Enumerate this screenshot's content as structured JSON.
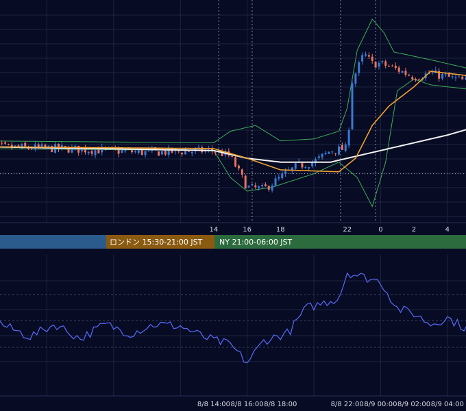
{
  "colors": {
    "background": "#070b24",
    "grid": "#1f2640",
    "candle_up": "#3a7bd5",
    "candle_down": "#e8735f",
    "bollinger": "#3fae59",
    "ma_short": "#f0a030",
    "ma_long": "#f2f2f2",
    "indicator_line": "#5566ee",
    "session_tokyo": "#2b5a8c",
    "session_london": "#8a5a10",
    "session_ny": "#2c6b3e",
    "price_line": "#a8a8b0"
  },
  "sessions": {
    "london_label": "ロンドン 15:30-21:00 JST",
    "ny_label": "NY 21:00-06:00 JST"
  },
  "chart_data": [
    {
      "type": "candlestick",
      "title": "",
      "xaxis": {
        "labels": [
          "14",
          "16",
          "18",
          "22",
          "0",
          "2",
          "4"
        ]
      },
      "indicators": [
        "Bollinger Bands",
        "Moving Average (short)",
        "Moving Average (long)"
      ],
      "grid": true,
      "note": "No price-axis labels are printed; values are in relative price units (0 = lowest, 100 = highest visible)",
      "close_path": [
        {
          "t": 0,
          "v": 34
        },
        {
          "t": 5,
          "v": 33
        },
        {
          "t": 10,
          "v": 31
        },
        {
          "t": 14,
          "v": 32
        },
        {
          "t": 15,
          "v": 29
        },
        {
          "t": 16,
          "v": 13
        },
        {
          "t": 17,
          "v": 12
        },
        {
          "t": 18,
          "v": 18
        },
        {
          "t": 19,
          "v": 24
        },
        {
          "t": 20,
          "v": 26
        },
        {
          "t": 21,
          "v": 32
        },
        {
          "t": 22,
          "v": 33
        },
        {
          "t": 22.3,
          "v": 68
        },
        {
          "t": 23,
          "v": 82
        },
        {
          "t": 23.5,
          "v": 77
        },
        {
          "t": 24,
          "v": 77
        },
        {
          "t": 25,
          "v": 74
        },
        {
          "t": 26,
          "v": 70
        },
        {
          "t": 27,
          "v": 72
        },
        {
          "t": 28,
          "v": 70
        },
        {
          "t": 29,
          "v": 68
        },
        {
          "t": 30,
          "v": 67
        },
        {
          "t": 31,
          "v": 66
        },
        {
          "t": 32,
          "v": 67
        },
        {
          "t": 33,
          "v": 65
        }
      ],
      "bollinger": {
        "upper": [
          {
            "t": 0,
            "v": 37
          },
          {
            "t": 14,
            "v": 36
          },
          {
            "t": 15,
            "v": 42
          },
          {
            "t": 16.5,
            "v": 45
          },
          {
            "t": 18,
            "v": 37
          },
          {
            "t": 20,
            "v": 38
          },
          {
            "t": 21.5,
            "v": 42
          },
          {
            "t": 22,
            "v": 54
          },
          {
            "t": 22.6,
            "v": 84
          },
          {
            "t": 23.5,
            "v": 100
          },
          {
            "t": 24.2,
            "v": 93
          },
          {
            "t": 24.8,
            "v": 83
          },
          {
            "t": 27,
            "v": 79
          },
          {
            "t": 30,
            "v": 73
          },
          {
            "t": 33,
            "v": 71
          }
        ],
        "lower": [
          {
            "t": 0,
            "v": 33
          },
          {
            "t": 14,
            "v": 32
          },
          {
            "t": 15,
            "v": 18
          },
          {
            "t": 16,
            "v": 11
          },
          {
            "t": 17.5,
            "v": 13
          },
          {
            "t": 20,
            "v": 20
          },
          {
            "t": 21.5,
            "v": 26
          },
          {
            "t": 22.6,
            "v": 18
          },
          {
            "t": 23.5,
            "v": 3
          },
          {
            "t": 24.3,
            "v": 26
          },
          {
            "t": 25,
            "v": 63
          },
          {
            "t": 26,
            "v": 69
          },
          {
            "t": 27,
            "v": 66
          },
          {
            "t": 30,
            "v": 63
          },
          {
            "t": 33,
            "v": 62
          }
        ]
      },
      "ma_short": [
        {
          "t": 0,
          "v": 34
        },
        {
          "t": 14,
          "v": 33
        },
        {
          "t": 16,
          "v": 28
        },
        {
          "t": 18,
          "v": 22
        },
        {
          "t": 21.5,
          "v": 21
        },
        {
          "t": 22.5,
          "v": 28
        },
        {
          "t": 23.5,
          "v": 45
        },
        {
          "t": 24.5,
          "v": 55
        },
        {
          "t": 26,
          "v": 65
        },
        {
          "t": 27,
          "v": 73
        },
        {
          "t": 28,
          "v": 72
        },
        {
          "t": 30,
          "v": 70
        },
        {
          "t": 33,
          "v": 68
        }
      ],
      "ma_long": [
        {
          "t": 0,
          "v": 34
        },
        {
          "t": 14,
          "v": 32
        },
        {
          "t": 16,
          "v": 28
        },
        {
          "t": 18,
          "v": 26
        },
        {
          "t": 21,
          "v": 26
        },
        {
          "t": 22,
          "v": 28
        },
        {
          "t": 24,
          "v": 32
        },
        {
          "t": 26,
          "v": 36
        },
        {
          "t": 28,
          "v": 40
        },
        {
          "t": 30,
          "v": 45
        },
        {
          "t": 33,
          "v": 50
        }
      ],
      "current_price": 20
    },
    {
      "type": "line",
      "title": "",
      "xaxis": {
        "labels": [
          "8/8 14:00",
          "8/8 16:00",
          "8/8 18:00",
          "8/8 22:00",
          "8/9 00:00",
          "8/9 02:00",
          "8/9 04:00"
        ]
      },
      "grid": true,
      "note": "Oscillator panel; values in relative units (0 = panel bottom, 100 = panel top)",
      "values": [
        {
          "t": 0,
          "v": 55
        },
        {
          "t": 1.5,
          "v": 40
        },
        {
          "t": 3,
          "v": 30
        },
        {
          "t": 4.5,
          "v": 42
        },
        {
          "t": 6,
          "v": 28
        },
        {
          "t": 7.5,
          "v": 42
        },
        {
          "t": 9,
          "v": 33
        },
        {
          "t": 10.5,
          "v": 42
        },
        {
          "t": 12,
          "v": 40
        },
        {
          "t": 13.5,
          "v": 29
        },
        {
          "t": 15,
          "v": 22
        },
        {
          "t": 16,
          "v": 5
        },
        {
          "t": 17,
          "v": 26
        },
        {
          "t": 18.5,
          "v": 34
        },
        {
          "t": 19.5,
          "v": 57
        },
        {
          "t": 20.5,
          "v": 62
        },
        {
          "t": 21.5,
          "v": 67
        },
        {
          "t": 22,
          "v": 92
        },
        {
          "t": 23,
          "v": 87
        },
        {
          "t": 24,
          "v": 83
        },
        {
          "t": 25,
          "v": 57
        },
        {
          "t": 26,
          "v": 52
        },
        {
          "t": 27,
          "v": 42
        },
        {
          "t": 28,
          "v": 48
        },
        {
          "t": 29,
          "v": 39
        },
        {
          "t": 30,
          "v": 44
        },
        {
          "t": 31,
          "v": 34
        },
        {
          "t": 32,
          "v": 45
        },
        {
          "t": 33,
          "v": 35
        }
      ]
    }
  ]
}
